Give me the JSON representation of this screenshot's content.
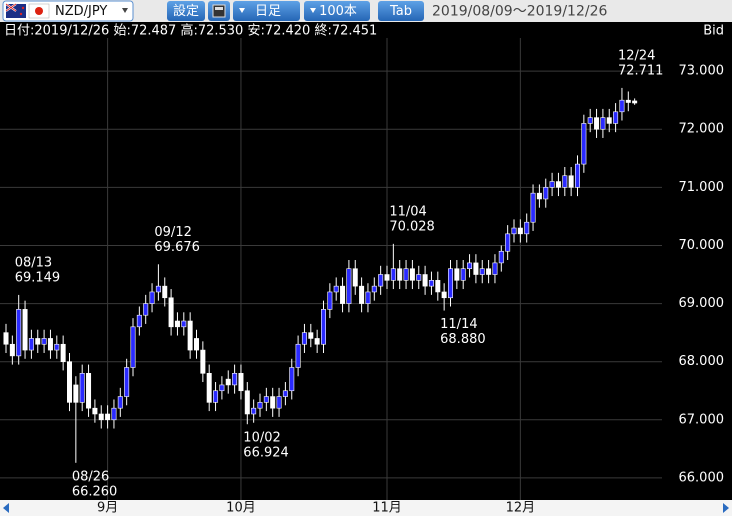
{
  "toolbar": {
    "pair": "NZD/JPY",
    "settings": "設定",
    "period": "日足",
    "count": "100本",
    "tab": "Tab",
    "range": "2019/08/09～2019/12/26"
  },
  "info": "日付:2019/12/26 始:72.487 高:72.530 安:72.420 終:72.451",
  "price_type": "Bid",
  "chart_data": {
    "type": "candlestick",
    "categories": [
      null,
      null,
      null,
      null,
      null,
      null,
      null,
      null,
      null,
      null,
      null,
      null,
      null,
      null,
      null,
      null,
      "9月",
      null,
      null,
      null,
      null,
      null,
      null,
      null,
      null,
      null,
      null,
      null,
      null,
      null,
      null,
      null,
      null,
      null,
      null,
      null,
      null,
      "10月",
      null,
      null,
      null,
      null,
      null,
      null,
      null,
      null,
      null,
      null,
      null,
      null,
      null,
      null,
      null,
      null,
      null,
      null,
      null,
      null,
      null,
      null,
      "11月",
      null,
      null,
      null,
      null,
      null,
      null,
      null,
      null,
      null,
      null,
      null,
      null,
      null,
      null,
      null,
      null,
      null,
      null,
      null,
      null,
      "12月",
      null,
      null,
      null,
      null,
      null,
      null,
      null,
      null,
      null,
      null,
      null,
      null,
      null,
      null,
      null,
      null,
      null,
      null
    ],
    "open": [
      68.5,
      68.3,
      68.1,
      68.9,
      68.2,
      68.4,
      68.3,
      68.4,
      68.2,
      68.3,
      68.0,
      67.6,
      67.3,
      67.8,
      67.2,
      67.1,
      67.1,
      67.0,
      67.2,
      67.4,
      67.9,
      68.6,
      68.8,
      69.0,
      69.2,
      69.3,
      69.1,
      68.7,
      68.6,
      68.7,
      68.4,
      68.2,
      67.8,
      67.3,
      67.5,
      67.7,
      67.6,
      67.8,
      67.5,
      67.1,
      67.2,
      67.3,
      67.4,
      67.2,
      67.4,
      67.5,
      67.9,
      68.3,
      68.5,
      68.4,
      68.3,
      68.9,
      69.2,
      69.3,
      69.0,
      69.6,
      69.3,
      69.0,
      69.2,
      69.3,
      69.5,
      69.4,
      69.6,
      69.4,
      69.6,
      69.4,
      69.5,
      69.3,
      69.4,
      69.2,
      69.1,
      69.6,
      69.4,
      69.6,
      69.7,
      69.5,
      69.6,
      69.5,
      69.7,
      69.9,
      70.2,
      70.3,
      70.2,
      70.4,
      70.9,
      70.8,
      71.0,
      71.1,
      71.0,
      71.2,
      71.0,
      71.4,
      72.1,
      72.2,
      72.0,
      72.2,
      72.1,
      72.3,
      72.5,
      72.487
    ],
    "high": [
      68.65,
      68.45,
      69.149,
      69.05,
      68.55,
      68.55,
      68.55,
      68.55,
      68.45,
      68.45,
      68.15,
      67.75,
      67.95,
      67.95,
      67.35,
      67.25,
      67.25,
      67.35,
      67.55,
      68.05,
      68.75,
      68.95,
      69.15,
      69.35,
      69.676,
      69.45,
      69.25,
      68.85,
      68.85,
      68.85,
      68.55,
      68.35,
      67.95,
      67.65,
      67.75,
      67.85,
      67.95,
      67.95,
      67.65,
      67.35,
      67.45,
      67.55,
      67.55,
      67.55,
      67.65,
      68.05,
      68.45,
      68.65,
      68.65,
      68.55,
      69.05,
      69.35,
      69.45,
      69.45,
      69.75,
      69.75,
      69.45,
      69.35,
      69.45,
      69.65,
      69.65,
      70.028,
      69.75,
      69.75,
      69.75,
      69.65,
      69.65,
      69.55,
      69.55,
      69.35,
      69.75,
      69.75,
      69.75,
      69.85,
      69.85,
      69.75,
      69.75,
      69.85,
      70.0,
      70.35,
      70.45,
      70.45,
      70.55,
      71.05,
      71.05,
      71.15,
      71.25,
      71.25,
      71.35,
      71.35,
      71.55,
      72.25,
      72.35,
      72.35,
      72.35,
      72.35,
      72.45,
      72.711,
      72.65,
      72.53
    ],
    "low": [
      68.15,
      67.95,
      67.95,
      68.05,
      68.05,
      68.15,
      68.15,
      68.05,
      68.05,
      67.85,
      67.15,
      66.26,
      67.15,
      67.05,
      66.95,
      66.85,
      66.85,
      66.85,
      67.05,
      67.25,
      67.75,
      68.45,
      68.65,
      68.85,
      69.05,
      68.95,
      68.45,
      68.45,
      68.45,
      68.05,
      68.05,
      67.65,
      67.15,
      67.15,
      67.35,
      67.45,
      67.45,
      67.35,
      66.924,
      66.95,
      67.05,
      67.15,
      67.05,
      67.05,
      67.25,
      67.35,
      67.75,
      68.15,
      68.25,
      68.15,
      68.15,
      68.75,
      69.05,
      68.85,
      68.85,
      69.15,
      68.85,
      68.85,
      69.05,
      69.15,
      69.25,
      69.25,
      69.25,
      69.25,
      69.25,
      69.25,
      69.15,
      69.15,
      69.05,
      68.88,
      68.95,
      69.25,
      69.25,
      69.45,
      69.35,
      69.35,
      69.35,
      69.35,
      69.55,
      69.75,
      70.05,
      70.05,
      70.05,
      70.25,
      70.65,
      70.65,
      70.85,
      70.85,
      70.85,
      70.85,
      70.85,
      71.25,
      71.95,
      71.85,
      71.85,
      71.95,
      71.95,
      72.15,
      72.31,
      72.42
    ],
    "close": [
      68.3,
      68.1,
      68.9,
      68.2,
      68.4,
      68.3,
      68.4,
      68.2,
      68.3,
      68.0,
      67.3,
      67.3,
      67.8,
      67.2,
      67.1,
      67.0,
      67.0,
      67.2,
      67.4,
      67.9,
      68.6,
      68.8,
      69.0,
      69.2,
      69.3,
      69.1,
      68.6,
      68.6,
      68.7,
      68.2,
      68.2,
      67.8,
      67.3,
      67.5,
      67.6,
      67.6,
      67.8,
      67.5,
      67.1,
      67.2,
      67.3,
      67.4,
      67.2,
      67.4,
      67.5,
      67.9,
      68.3,
      68.5,
      68.4,
      68.3,
      68.9,
      69.2,
      69.3,
      69.0,
      69.6,
      69.3,
      69.0,
      69.2,
      69.3,
      69.5,
      69.4,
      69.6,
      69.4,
      69.6,
      69.4,
      69.5,
      69.3,
      69.4,
      69.2,
      69.1,
      69.6,
      69.4,
      69.6,
      69.7,
      69.5,
      69.6,
      69.5,
      69.7,
      69.9,
      70.2,
      70.3,
      70.2,
      70.4,
      70.9,
      70.8,
      71.0,
      71.1,
      71.0,
      71.2,
      71.0,
      71.4,
      72.1,
      72.2,
      72.0,
      72.2,
      72.1,
      72.3,
      72.5,
      72.46,
      72.451
    ],
    "colors": {
      "up": "#2a2aff",
      "down": "#ffffff",
      "wick": "#ffffff"
    },
    "ylim": [
      65.62,
      73.57
    ],
    "yticks": [
      {
        "value": 66,
        "label": "66.000"
      },
      {
        "value": 67,
        "label": "67.000"
      },
      {
        "value": 68,
        "label": "68.000"
      },
      {
        "value": 69,
        "label": "69.000"
      },
      {
        "value": 70,
        "label": "70.000"
      },
      {
        "value": 71,
        "label": "71.000"
      },
      {
        "value": 72,
        "label": "72.000"
      },
      {
        "value": 73,
        "label": "73.000"
      }
    ],
    "grid": true,
    "annotations": [
      {
        "date": "08/13",
        "value": 69.149,
        "label": "69.149"
      },
      {
        "date": "08/26",
        "value": 66.26,
        "label": "66.260"
      },
      {
        "date": "09/12",
        "value": 69.676,
        "label": "69.676"
      },
      {
        "date": "10/02",
        "value": 66.924,
        "label": "66.924"
      },
      {
        "date": "11/04",
        "value": 70.028,
        "label": "70.028"
      },
      {
        "date": "11/14",
        "value": 68.88,
        "label": "68.880"
      },
      {
        "date": "12/24",
        "value": 72.711,
        "label": "72.711"
      }
    ]
  }
}
